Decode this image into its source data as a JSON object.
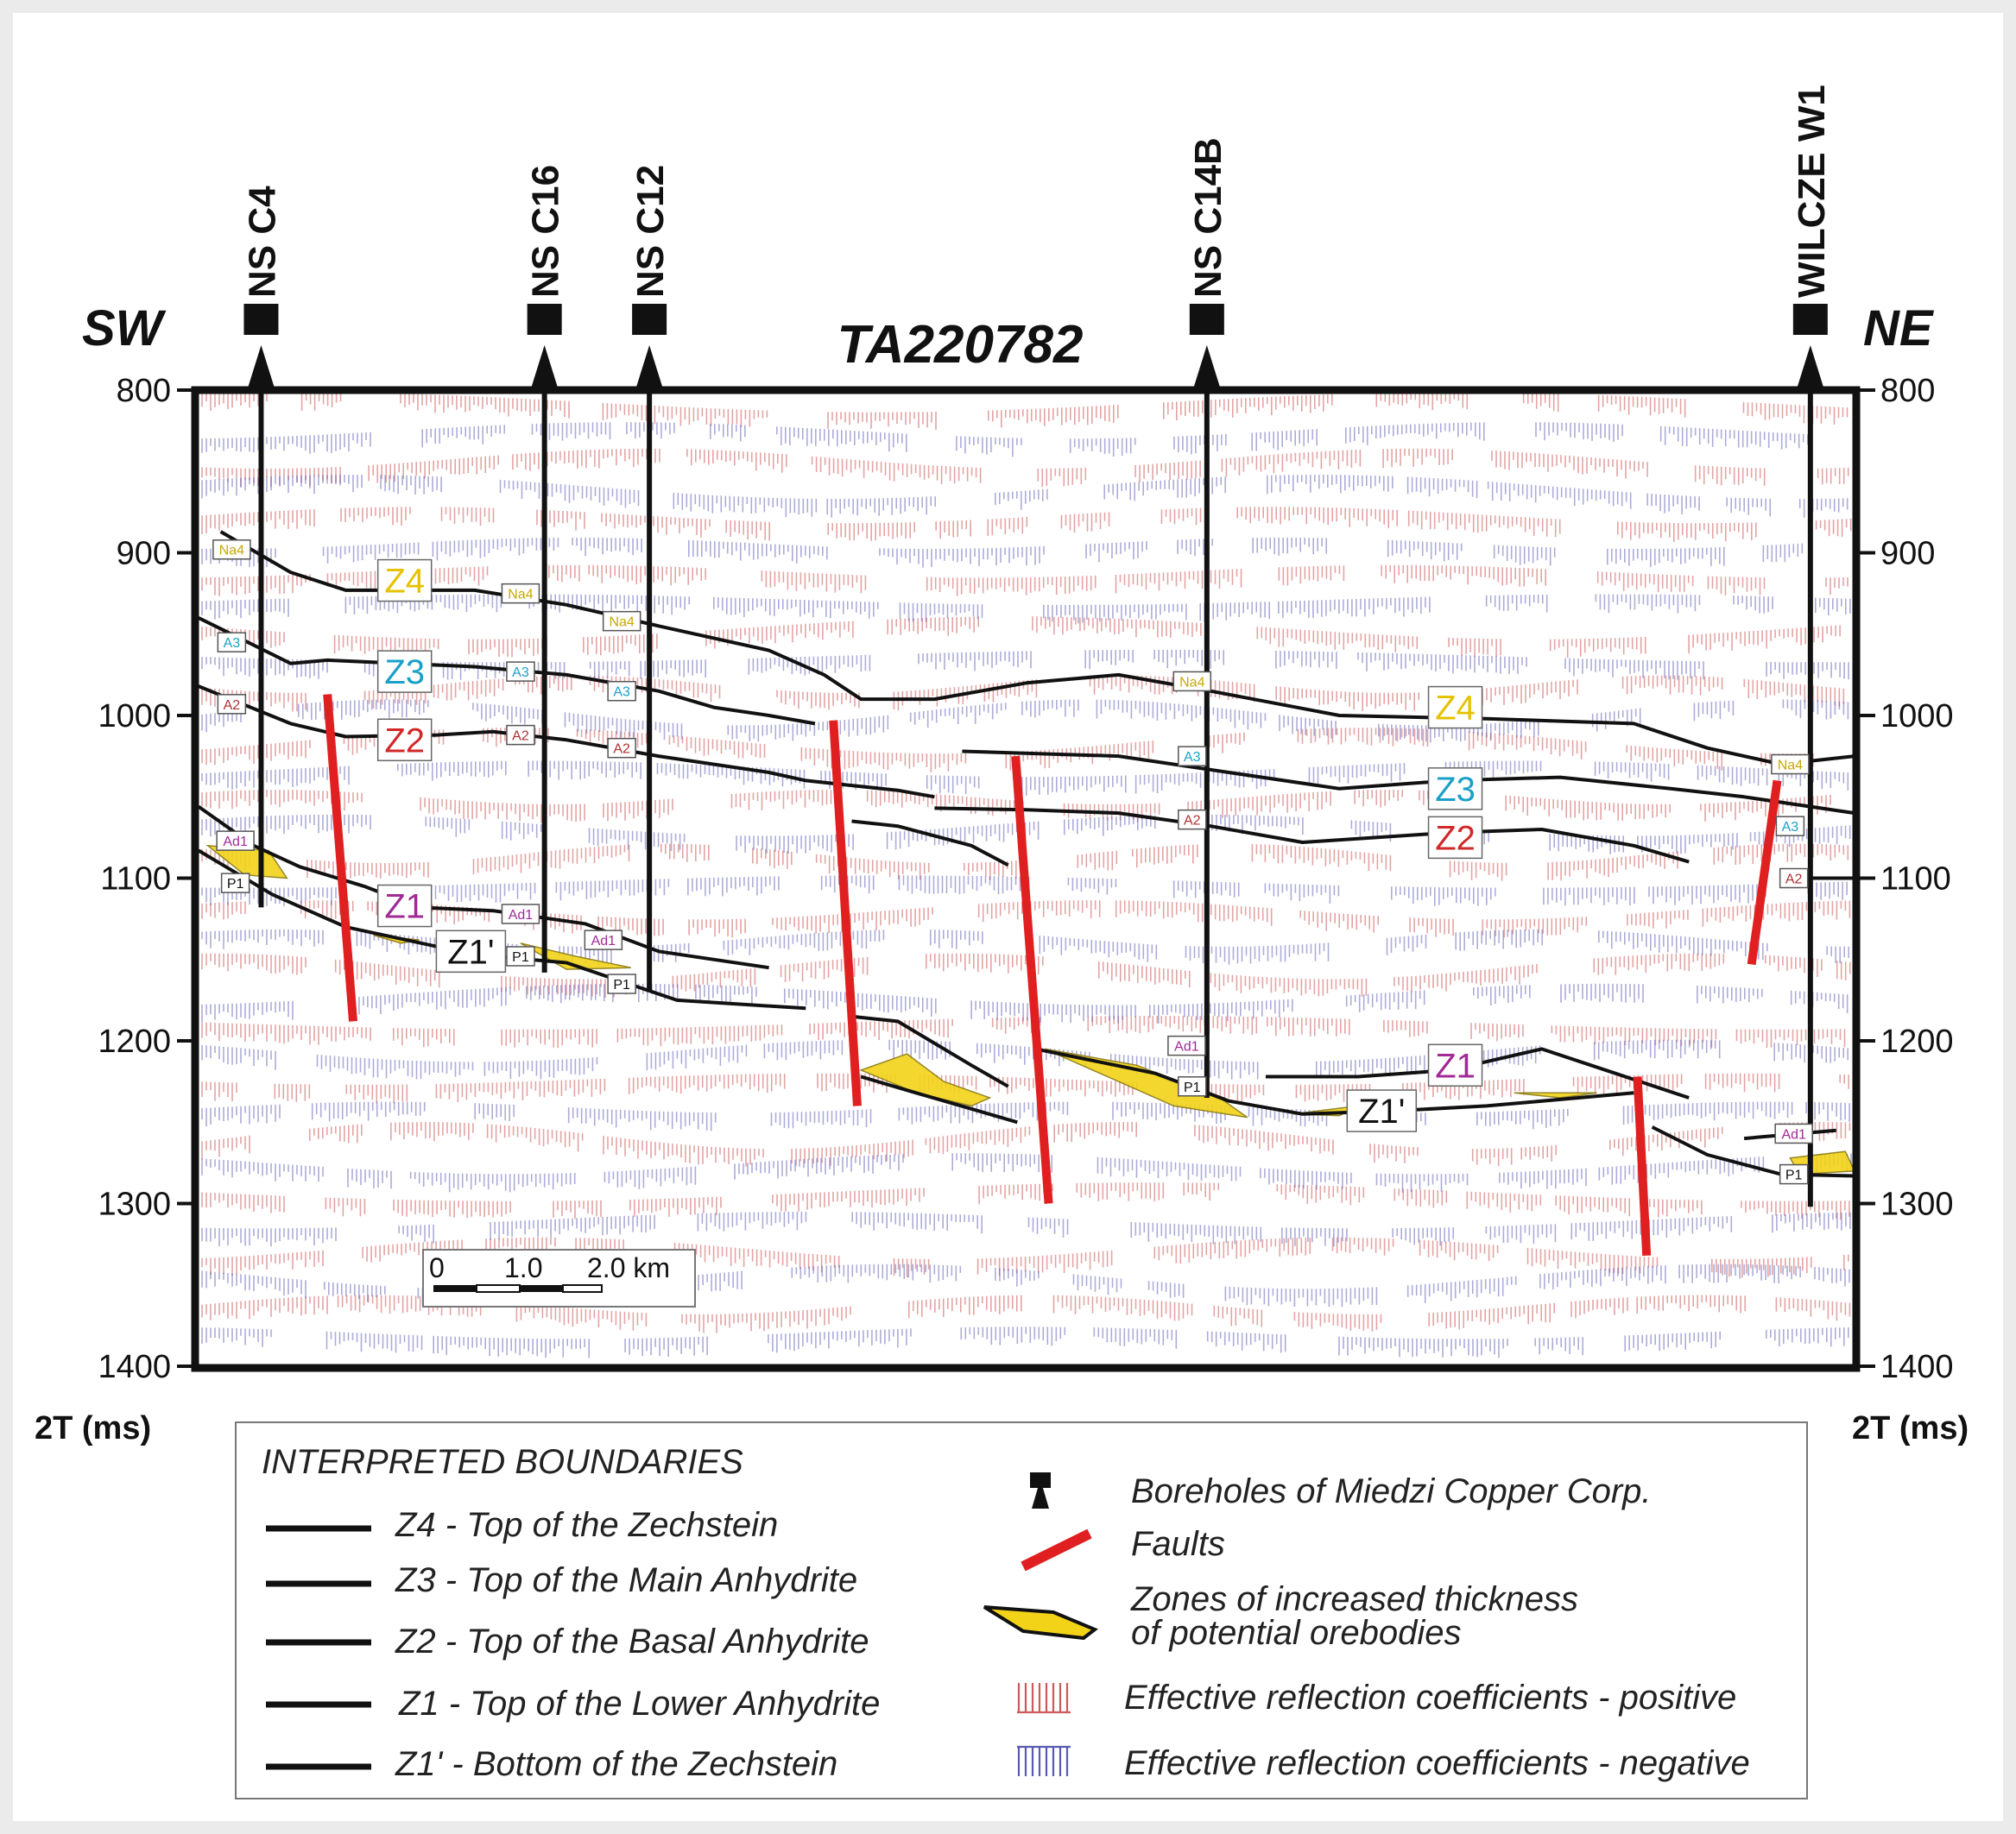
{
  "profile": {
    "name": "TA220782",
    "left_direction": "SW",
    "right_direction": "NE"
  },
  "axis": {
    "unit_left": "2T (ms)",
    "unit_right": "2T (ms)",
    "ticks": [
      "800",
      "900",
      "1000",
      "1100",
      "1200",
      "1300",
      "1400"
    ]
  },
  "boreholes": [
    {
      "name": "NS C4",
      "pos_km": 0.34,
      "bottom_ms": 1118
    },
    {
      "name": "NS C16",
      "pos_km": 1.88,
      "bottom_ms": 1158
    },
    {
      "name": "NS C12",
      "pos_km": 2.45,
      "bottom_ms": 1170
    },
    {
      "name": "NS C14B",
      "pos_km": 5.48,
      "bottom_ms": 1235
    },
    {
      "name": "WILCZE W1",
      "pos_km": 8.76,
      "bottom_ms": 1302
    }
  ],
  "horizon_labels": [
    {
      "text": "Z4",
      "color": "#e6c200",
      "pos_km": 1.12,
      "ms": 917
    },
    {
      "text": "Z3",
      "color": "#1aa0c8",
      "pos_km": 1.12,
      "ms": 973
    },
    {
      "text": "Z2",
      "color": "#d22828",
      "pos_km": 1.12,
      "ms": 1015
    },
    {
      "text": "Z1",
      "color": "#a02a96",
      "pos_km": 1.12,
      "ms": 1117
    },
    {
      "text": "Z1'",
      "color": "#111111",
      "pos_km": 1.48,
      "ms": 1145
    },
    {
      "text": "Z4",
      "color": "#e6c200",
      "pos_km": 6.83,
      "ms": 995
    },
    {
      "text": "Z3",
      "color": "#1aa0c8",
      "pos_km": 6.83,
      "ms": 1045
    },
    {
      "text": "Z2",
      "color": "#d22828",
      "pos_km": 6.83,
      "ms": 1075
    },
    {
      "text": "Z1",
      "color": "#a02a96",
      "pos_km": 6.83,
      "ms": 1215
    },
    {
      "text": "Z1'",
      "color": "#111111",
      "pos_km": 6.43,
      "ms": 1243
    }
  ],
  "marker_tags": [
    {
      "text": "Na4",
      "color": "#c8a800",
      "pos_km": 0.18,
      "ms": 898
    },
    {
      "text": "A3",
      "color": "#1aa0c8",
      "pos_km": 0.18,
      "ms": 955
    },
    {
      "text": "A2",
      "color": "#b03030",
      "pos_km": 0.18,
      "ms": 993
    },
    {
      "text": "Ad1",
      "color": "#a02a96",
      "pos_km": 0.2,
      "ms": 1077
    },
    {
      "text": "P1",
      "color": "#111111",
      "pos_km": 0.2,
      "ms": 1103
    },
    {
      "text": "Na4",
      "color": "#c8a800",
      "pos_km": 1.75,
      "ms": 925
    },
    {
      "text": "A3",
      "color": "#1aa0c8",
      "pos_km": 1.75,
      "ms": 973
    },
    {
      "text": "A2",
      "color": "#b03030",
      "pos_km": 1.75,
      "ms": 1012
    },
    {
      "text": "Ad1",
      "color": "#a02a96",
      "pos_km": 1.75,
      "ms": 1122
    },
    {
      "text": "P1",
      "color": "#111111",
      "pos_km": 1.75,
      "ms": 1148
    },
    {
      "text": "Na4",
      "color": "#c8a800",
      "pos_km": 2.3,
      "ms": 942
    },
    {
      "text": "A3",
      "color": "#1aa0c8",
      "pos_km": 2.3,
      "ms": 985
    },
    {
      "text": "A2",
      "color": "#b03030",
      "pos_km": 2.3,
      "ms": 1020
    },
    {
      "text": "Ad1",
      "color": "#a02a96",
      "pos_km": 2.2,
      "ms": 1138
    },
    {
      "text": "P1",
      "color": "#111111",
      "pos_km": 2.3,
      "ms": 1165
    },
    {
      "text": "Na4",
      "color": "#c8a800",
      "pos_km": 5.4,
      "ms": 979
    },
    {
      "text": "A3",
      "color": "#1aa0c8",
      "pos_km": 5.4,
      "ms": 1025
    },
    {
      "text": "A2",
      "color": "#b03030",
      "pos_km": 5.4,
      "ms": 1064
    },
    {
      "text": "Ad1",
      "color": "#a02a96",
      "pos_km": 5.37,
      "ms": 1203
    },
    {
      "text": "P1",
      "color": "#111111",
      "pos_km": 5.4,
      "ms": 1228
    },
    {
      "text": "Na4",
      "color": "#c8a800",
      "pos_km": 8.65,
      "ms": 1030
    },
    {
      "text": "A3",
      "color": "#1aa0c8",
      "pos_km": 8.65,
      "ms": 1068
    },
    {
      "text": "A2",
      "color": "#b03030",
      "pos_km": 8.67,
      "ms": 1100
    },
    {
      "text": "Ad1",
      "color": "#a02a96",
      "pos_km": 8.67,
      "ms": 1257
    },
    {
      "text": "P1",
      "color": "#111111",
      "pos_km": 8.67,
      "ms": 1282
    }
  ],
  "horizons": [
    {
      "id": "Z4",
      "segments": [
        [
          [
            0.12,
            887
          ],
          [
            0.5,
            912
          ],
          [
            0.8,
            923
          ],
          [
            1.5,
            923
          ],
          [
            2.0,
            932
          ],
          [
            2.5,
            945
          ],
          [
            3.1,
            960
          ],
          [
            3.4,
            975
          ],
          [
            3.6,
            990
          ],
          [
            4.0,
            990
          ],
          [
            4.5,
            980
          ],
          [
            5.0,
            975
          ],
          [
            5.5,
            985
          ],
          [
            6.2,
            1000
          ],
          [
            7.0,
            1002
          ],
          [
            7.8,
            1005
          ],
          [
            8.2,
            1020
          ],
          [
            8.6,
            1030
          ],
          [
            9.0,
            1025
          ]
        ]
      ]
    },
    {
      "id": "Z3",
      "segments": [
        [
          [
            0.0,
            940
          ],
          [
            0.5,
            968
          ],
          [
            0.7,
            966
          ],
          [
            1.5,
            970
          ],
          [
            2.0,
            975
          ],
          [
            2.5,
            985
          ],
          [
            2.8,
            995
          ],
          [
            3.1,
            1000
          ],
          [
            3.35,
            1005
          ]
        ],
        [
          [
            4.15,
            1022
          ],
          [
            5.0,
            1025
          ],
          [
            5.6,
            1035
          ],
          [
            6.2,
            1045
          ],
          [
            6.8,
            1040
          ],
          [
            7.4,
            1038
          ],
          [
            8.0,
            1045
          ],
          [
            8.4,
            1050
          ],
          [
            9.0,
            1060
          ]
        ]
      ]
    },
    {
      "id": "Z2",
      "segments": [
        [
          [
            0.0,
            982
          ],
          [
            0.5,
            1005
          ],
          [
            0.8,
            1013
          ],
          [
            1.3,
            1012
          ],
          [
            1.6,
            1010
          ],
          [
            2.0,
            1015
          ],
          [
            2.5,
            1025
          ],
          [
            3.1,
            1035
          ],
          [
            3.3,
            1040
          ],
          [
            3.55,
            1043
          ],
          [
            3.8,
            1046
          ],
          [
            4.0,
            1050
          ]
        ],
        [
          [
            4.0,
            1057
          ],
          [
            4.5,
            1058
          ],
          [
            5.0,
            1060
          ],
          [
            5.5,
            1068
          ],
          [
            6.0,
            1078
          ],
          [
            6.8,
            1072
          ],
          [
            7.3,
            1070
          ],
          [
            7.8,
            1080
          ],
          [
            8.1,
            1090
          ]
        ],
        [
          [
            8.7,
            1100
          ],
          [
            9.0,
            1100
          ]
        ]
      ]
    },
    {
      "id": "Z1",
      "segments": [
        [
          [
            0.0,
            1056
          ],
          [
            0.3,
            1080
          ],
          [
            0.55,
            1093
          ],
          [
            0.9,
            1105
          ],
          [
            1.2,
            1118
          ],
          [
            1.6,
            1120
          ],
          [
            2.1,
            1128
          ],
          [
            2.5,
            1145
          ],
          [
            3.1,
            1155
          ]
        ],
        [
          [
            3.55,
            1065
          ],
          [
            3.8,
            1068
          ],
          [
            4.2,
            1080
          ],
          [
            4.4,
            1092
          ]
        ]
      ]
    },
    {
      "id": "Z1p",
      "segments": [
        [
          [
            0.0,
            1083
          ],
          [
            0.4,
            1110
          ],
          [
            0.8,
            1130
          ],
          [
            1.5,
            1147
          ],
          [
            2.0,
            1152
          ],
          [
            2.6,
            1175
          ],
          [
            3.3,
            1180
          ]
        ],
        [
          [
            3.55,
            1185
          ],
          [
            3.8,
            1188
          ],
          [
            4.2,
            1215
          ],
          [
            4.4,
            1228
          ]
        ]
      ]
    },
    {
      "id": "Z1b",
      "segments": [
        [
          [
            3.6,
            1222
          ],
          [
            3.9,
            1232
          ],
          [
            4.45,
            1250
          ]
        ],
        [
          [
            4.55,
            1205
          ],
          [
            5.2,
            1220
          ],
          [
            5.6,
            1237
          ],
          [
            6.0,
            1245
          ],
          [
            6.5,
            1243
          ],
          [
            7.0,
            1240
          ],
          [
            7.5,
            1235
          ],
          [
            7.8,
            1232
          ]
        ],
        [
          [
            5.8,
            1222
          ],
          [
            6.3,
            1222
          ],
          [
            6.8,
            1218
          ],
          [
            7.3,
            1205
          ],
          [
            7.7,
            1220
          ],
          [
            8.1,
            1235
          ]
        ],
        [
          [
            7.9,
            1253
          ],
          [
            8.2,
            1270
          ],
          [
            8.6,
            1282
          ],
          [
            9.0,
            1283
          ]
        ],
        [
          [
            8.4,
            1260
          ],
          [
            8.9,
            1255
          ]
        ]
      ]
    }
  ],
  "faults": [
    {
      "top": [
        0.7,
        987
      ],
      "bottom": [
        0.84,
        1188
      ]
    },
    {
      "top": [
        3.45,
        1003
      ],
      "bottom": [
        3.58,
        1240
      ]
    },
    {
      "top": [
        4.44,
        1025
      ],
      "bottom": [
        4.62,
        1300
      ]
    },
    {
      "top": [
        8.58,
        1040
      ],
      "bottom": [
        8.44,
        1153
      ]
    },
    {
      "top": [
        7.82,
        1222
      ],
      "bottom": [
        7.87,
        1332
      ]
    }
  ],
  "orebodies": [
    {
      "points": [
        [
          0.05,
          1080
        ],
        [
          0.38,
          1083
        ],
        [
          0.48,
          1100
        ],
        [
          0.25,
          1098
        ]
      ]
    },
    {
      "points": [
        [
          0.95,
          1135
        ],
        [
          1.2,
          1138
        ],
        [
          1.1,
          1140
        ]
      ]
    },
    {
      "points": [
        [
          1.75,
          1140
        ],
        [
          2.05,
          1148
        ],
        [
          2.35,
          1155
        ],
        [
          2.0,
          1156
        ]
      ]
    },
    {
      "points": [
        [
          3.6,
          1218
        ],
        [
          3.85,
          1208
        ],
        [
          4.05,
          1225
        ],
        [
          4.3,
          1235
        ],
        [
          4.2,
          1240
        ],
        [
          3.9,
          1232
        ]
      ]
    },
    {
      "points": [
        [
          4.6,
          1205
        ],
        [
          5.1,
          1215
        ],
        [
          5.55,
          1235
        ],
        [
          5.7,
          1247
        ],
        [
          5.3,
          1240
        ],
        [
          4.8,
          1215
        ]
      ]
    },
    {
      "points": [
        [
          5.95,
          1245
        ],
        [
          6.3,
          1240
        ],
        [
          6.2,
          1246
        ]
      ]
    },
    {
      "points": [
        [
          7.15,
          1232
        ],
        [
          7.6,
          1232
        ],
        [
          7.4,
          1235
        ]
      ]
    },
    {
      "points": [
        [
          8.65,
          1272
        ],
        [
          8.95,
          1268
        ],
        [
          9.0,
          1280
        ],
        [
          8.7,
          1282
        ]
      ]
    }
  ],
  "scalebar": {
    "labels": [
      "0",
      "1.0",
      "2.0 km"
    ]
  },
  "legend": {
    "heading": "INTERPRETED BOUNDARIES",
    "boundaries": [
      "Z4 - Top of the Zechstein",
      "Z3 - Top of the Main Anhydrite",
      "Z2 - Top of the Basal Anhydrite",
      "Z1 - Top of the Lower Anhydrite",
      "Z1' - Bottom of the Zechstein"
    ],
    "boreholes": "Boreholes of Miedzi Copper Corp.",
    "faults": "Faults",
    "zones_line1": "Zones of increased thickness",
    "zones_line2": "of potential orebodies",
    "coef_positive": "Effective reflection coefficients - positive",
    "coef_negative": "Effective reflection coefficients - negative"
  },
  "colors": {
    "positive_coef": "#cc5a5a",
    "negative_coef": "#5a5ab4",
    "fault": "#e02020",
    "orebody": "#f2d318",
    "horizon": "#111111",
    "frame": "#111111"
  }
}
